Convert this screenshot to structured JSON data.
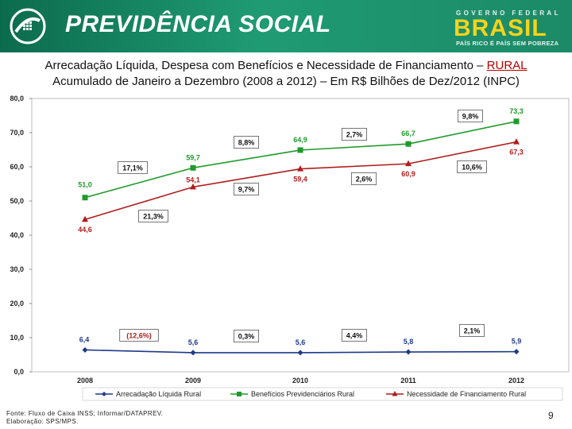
{
  "header": {
    "brand": "PREVIDÊNCIA SOCIAL",
    "gov_label": "GOVERNO FEDERAL",
    "country": "BRASIL",
    "slogan": "PAÍS RICO É PAÍS SEM POBREZA"
  },
  "title": {
    "line1_prefix": "Arrecadação Líquida, Despesa com Benefícios e Necessidade de Financiamento – ",
    "line1_highlight": "RURAL",
    "line2": "Acumulado de Janeiro a Dezembro (2008 a 2012) – Em R$ Bilhões de Dez/2012 (INPC)"
  },
  "footer": {
    "source": "Fonte: Fluxo de Caixa INSS; Informar/DATAPREV.",
    "credit": "Elaboração: SPS/MPS.",
    "page": "9"
  },
  "colors": {
    "header_green": "#1f8f6a",
    "brasil_yellow": "#f7d31c",
    "arrecadacao": "#1f3a8a",
    "beneficios": "#1f9a2c",
    "necessidade": "#b01c1c"
  },
  "chart_data": {
    "type": "line",
    "title": "",
    "xlabel": "",
    "ylabel": "",
    "ylim": [
      0,
      80
    ],
    "y_ticks": [
      "0,0",
      "10,0",
      "20,0",
      "30,0",
      "40,0",
      "50,0",
      "60,0",
      "70,0",
      "80,0"
    ],
    "categories": [
      "2008",
      "2009",
      "2010",
      "2011",
      "2012"
    ],
    "series": [
      {
        "name": "Arrecadação Líquida Rural",
        "values": [
          6.4,
          5.6,
          5.6,
          5.8,
          5.9
        ],
        "labels": [
          "6,4",
          "5,6",
          "5,6",
          "5,8",
          "5,9"
        ],
        "marker": "diamond"
      },
      {
        "name": "Benefícios Previdenciários Rural",
        "values": [
          51.0,
          59.7,
          64.9,
          66.7,
          73.3
        ],
        "labels": [
          "51,0",
          "59,7",
          "64,9",
          "66,7",
          "73,3"
        ],
        "marker": "square"
      },
      {
        "name": "Necessidade de Financiamento Rural",
        "values": [
          44.6,
          54.1,
          59.4,
          60.9,
          67.3
        ],
        "labels": [
          "44,6",
          "54,1",
          "59,4",
          "60,9",
          "67,3"
        ],
        "marker": "triangle"
      }
    ],
    "annotations": {
      "arrecadacao_growth": [
        "(12,6%)",
        "0,3%",
        "4,4%",
        "2,1%"
      ],
      "beneficios_growth": [
        "17,1%",
        "8,8%",
        "2,7%",
        "9,8%"
      ],
      "necessidade_growth": [
        "21,3%",
        "9,7%",
        "2,6%",
        "10,6%"
      ]
    },
    "legend_position": "bottom"
  }
}
